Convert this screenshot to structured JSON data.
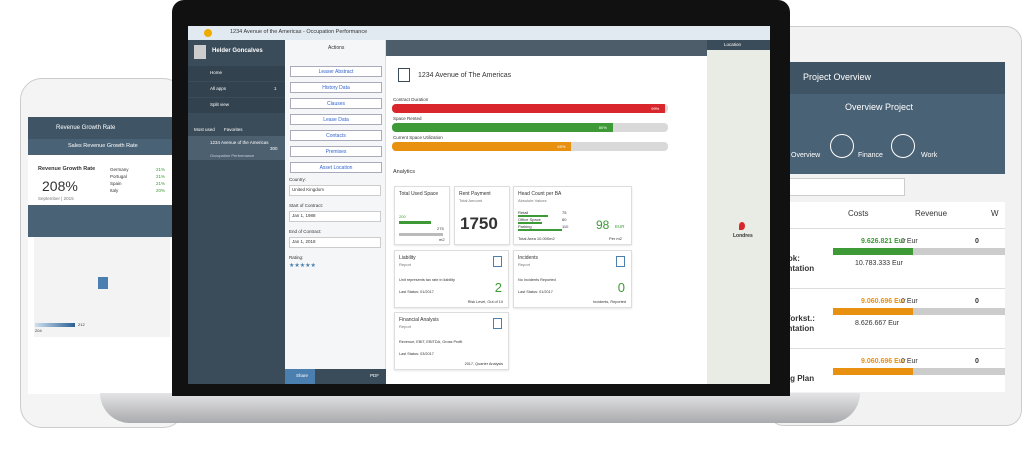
{
  "phone": {
    "header": "Revenue Growth Rate",
    "subheader": "Sales Revenue Growth Rate",
    "card_title": "Revenue Growth Rate",
    "kpi": "208%",
    "date": "September | 2015",
    "table": [
      [
        "Germany",
        "21%"
      ],
      [
        "Portugal",
        "21%"
      ],
      [
        "Spain",
        "21%"
      ],
      [
        "Italy",
        "20%"
      ]
    ],
    "legend": [
      "204",
      "212"
    ]
  },
  "laptop": {
    "topbar_title": "1234 Avenue of the Americas - Occupation Performance",
    "user": "Helder Goncalves",
    "menu": [
      {
        "label": "Home"
      },
      {
        "label": "All apps",
        "count": "1"
      },
      {
        "label": "Split view"
      }
    ],
    "tabs": [
      "Most used",
      "Favorites"
    ],
    "recent": {
      "title": "1234 Avenue of the Americas",
      "subtitle": "Occupation Performance",
      "count": "300"
    },
    "actions_title": "Actions",
    "actions": [
      "Leaser Abstract",
      "History Data",
      "Clauses",
      "Lease Data",
      "Contacts",
      "Premises",
      "Asset Location"
    ],
    "fields": [
      {
        "label": "Country:",
        "value": "United Kingdom"
      },
      {
        "label": "Start of Contract:",
        "value": "Jan 1, 1988"
      },
      {
        "label": "End of Contract:",
        "value": "Jan 1, 2018"
      }
    ],
    "rating_label": "Rating:",
    "share": "Share",
    "pdf": "PDF",
    "title": "1234 Avenue of The Americas",
    "progress": [
      {
        "label": "Contract Duration",
        "value": 99,
        "value_label": "99%",
        "color": "#d9262c"
      },
      {
        "label": "Space Rented",
        "value": 80,
        "value_label": "80%",
        "color": "#3d9a36"
      },
      {
        "label": "Current Space Utilization",
        "value": 65,
        "value_label": "65%",
        "color": "#e8900f"
      }
    ],
    "analytics": "Analytics",
    "cards": {
      "used_space": {
        "title": "Total Used Space",
        "values": [
          200,
          275
        ],
        "unit": "m2"
      },
      "rent": {
        "title": "Rent Payment",
        "subtitle": "Total Amount",
        "kpi": "1750"
      },
      "headcount": {
        "title": "Head Count per BA",
        "subtitle": "Absolute Values",
        "categories": [
          "Retail",
          "Office Space",
          "Parking"
        ],
        "values": [
          75,
          60,
          110
        ],
        "footer": "Total Area 10.000m2",
        "kpi": "98",
        "unit": "EUR",
        "kpi_caption": "Per m2"
      },
      "liability": {
        "title": "Liability",
        "subtitle": "Report",
        "text": "Unit represents tax rate in liability",
        "kpi": "2",
        "status": "Last Status: 01/2017",
        "caption": "Risk Level, Out of 10"
      },
      "incidents": {
        "title": "Incidents",
        "subtitle": "Report",
        "text": "No Incidents Reported",
        "kpi": "0",
        "status": "Last Status: 01/2017",
        "caption": "Incidents, Reported"
      },
      "financial": {
        "title": "Financial Analysis",
        "subtitle": "Report",
        "text": "Revenue, EBIT, EBITDA, Gross Profit",
        "status": "Last Status: 03/2017",
        "caption": "2017, Quarter Analysis"
      }
    },
    "map": {
      "title": "Location",
      "city": "Londres"
    }
  },
  "tablet": {
    "header": "Project Overview",
    "subheader": "Overview Project",
    "tabs": [
      "Overview",
      "Finance",
      "Work"
    ],
    "columns": [
      "Costs",
      "Revenue",
      "W"
    ],
    "rows": [
      {
        "name": "ook:\nentation",
        "costs": "9.626.821 Eur",
        "costs2": "10.783.333 Eur",
        "revenue": "0 Eur",
        "work": "0"
      },
      {
        "name": "Workst.:\nentation",
        "costs": "9.060.696 Eur",
        "costs2": "8.626.667 Eur",
        "revenue": "0 Eur",
        "work": "0"
      },
      {
        "name": "ing Plan",
        "costs": "9.060.696 Eur",
        "costs2": "",
        "revenue": "0 Eur",
        "work": "0"
      }
    ]
  }
}
